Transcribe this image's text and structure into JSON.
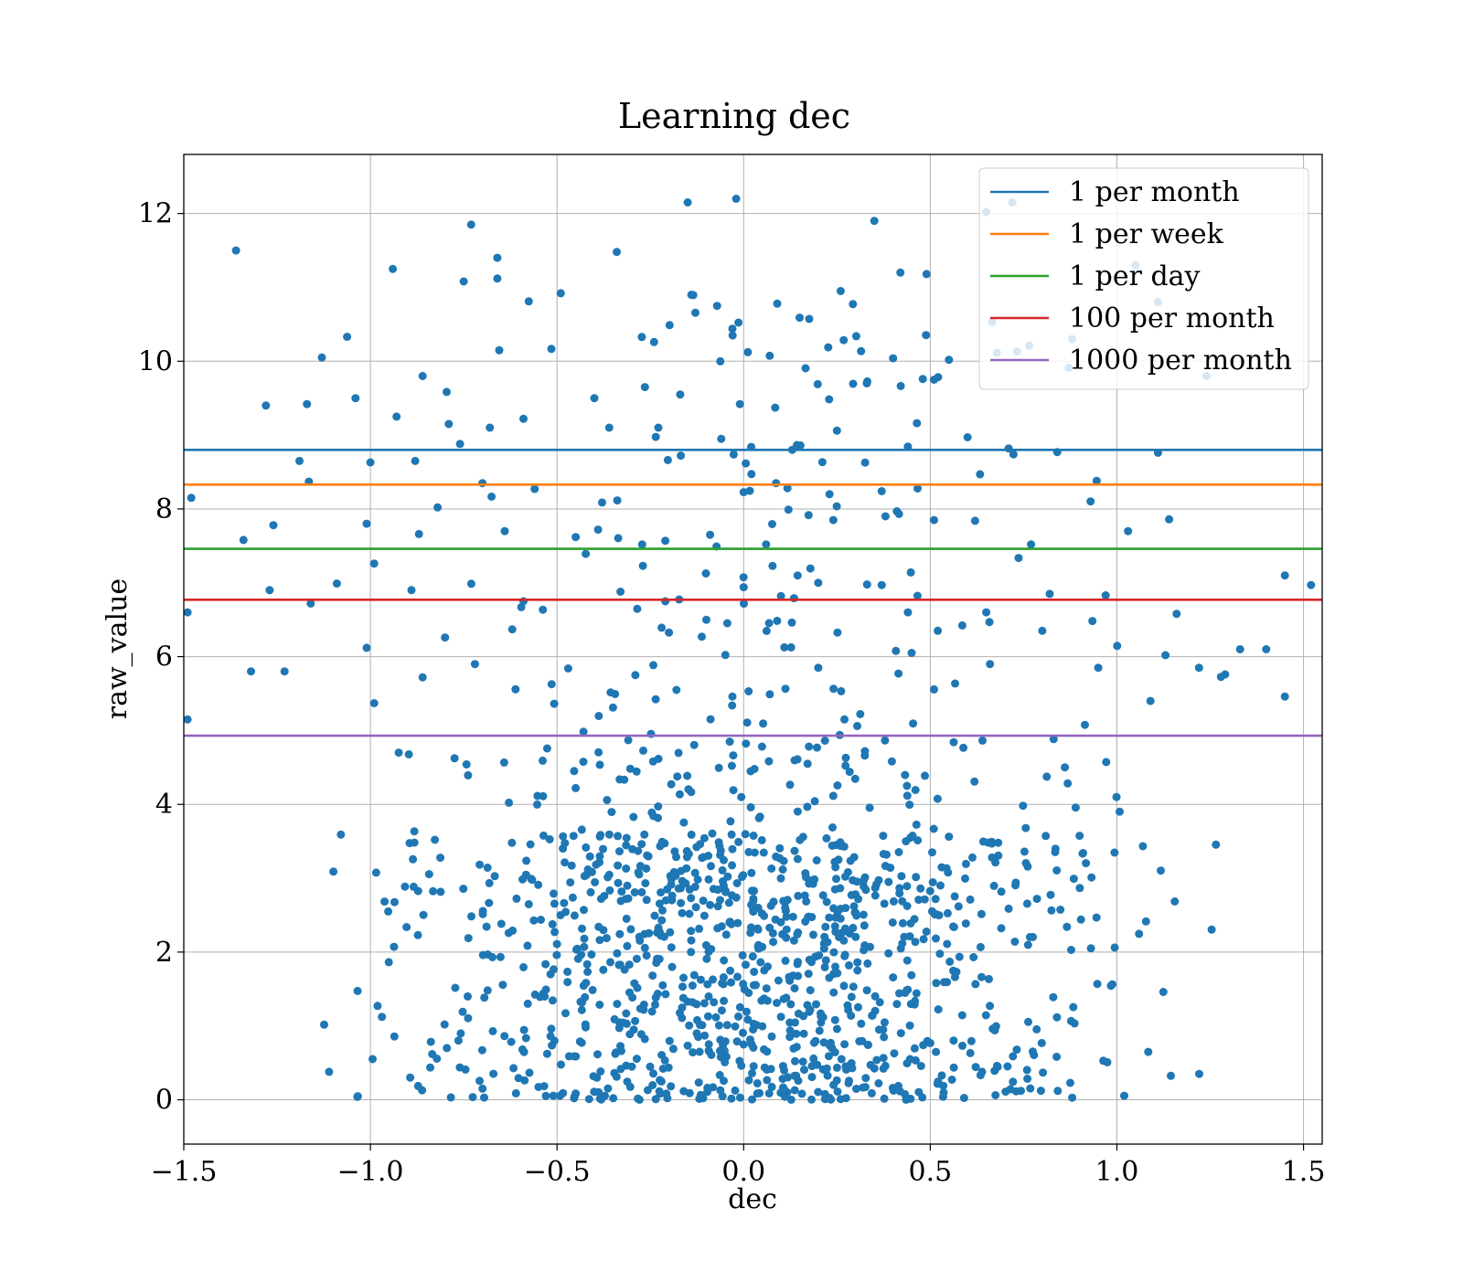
{
  "chart_data": {
    "type": "scatter",
    "title": "Learning dec",
    "xlabel": "dec",
    "ylabel": "raw_value",
    "xlim": [
      -1.5,
      1.55
    ],
    "ylim": [
      -0.6,
      12.8
    ],
    "xticks": [
      -1.5,
      -1.0,
      -0.5,
      0.0,
      0.5,
      1.0,
      1.5
    ],
    "xtick_labels": [
      "−1.5",
      "−1.0",
      "−0.5",
      "0.0",
      "0.5",
      "1.0",
      "1.5"
    ],
    "yticks": [
      0,
      2,
      4,
      6,
      8,
      10,
      12
    ],
    "ytick_labels": [
      "0",
      "2",
      "4",
      "6",
      "8",
      "10",
      "12"
    ],
    "grid": true,
    "legend_position": "top-right",
    "scatter_color": "#1f77b4",
    "point_count": 1400,
    "point_seed": 7,
    "points": [
      [
        -1.36,
        11.5
      ],
      [
        -0.94,
        11.25
      ],
      [
        -0.73,
        11.85
      ],
      [
        -0.15,
        12.15
      ],
      [
        -0.02,
        12.2
      ],
      [
        0.35,
        11.9
      ],
      [
        0.72,
        12.15
      ],
      [
        -0.34,
        11.48
      ],
      [
        -0.66,
        11.4
      ],
      [
        -1.13,
        10.05
      ],
      [
        -0.75,
        11.08
      ],
      [
        -0.66,
        11.12
      ],
      [
        -0.49,
        10.92
      ],
      [
        -0.14,
        10.9
      ],
      [
        0.26,
        10.95
      ],
      [
        0.42,
        11.2
      ],
      [
        0.49,
        11.18
      ],
      [
        0.65,
        12.02
      ],
      [
        1.05,
        11.3
      ],
      [
        -1.28,
        9.4
      ],
      [
        -1.17,
        9.42
      ],
      [
        -0.93,
        9.25
      ],
      [
        -0.86,
        9.8
      ],
      [
        -1.04,
        9.5
      ],
      [
        -0.79,
        9.15
      ],
      [
        -0.68,
        9.1
      ],
      [
        -0.59,
        9.22
      ],
      [
        -0.4,
        9.5
      ],
      [
        -0.36,
        9.1
      ],
      [
        -0.24,
        10.26
      ],
      [
        -0.17,
        9.55
      ],
      [
        -0.03,
        10.44
      ],
      [
        -0.01,
        9.42
      ],
      [
        0.09,
        10.78
      ],
      [
        0.15,
        10.59
      ],
      [
        0.25,
        9.06
      ],
      [
        0.33,
        9.7
      ],
      [
        0.48,
        9.76
      ],
      [
        0.55,
        10.02
      ],
      [
        0.6,
        8.97
      ],
      [
        0.88,
        10.3
      ],
      [
        1.11,
        10.8
      ],
      [
        1.24,
        9.8
      ],
      [
        -1.48,
        8.15
      ],
      [
        -1.19,
        8.65
      ],
      [
        -1.0,
        8.63
      ],
      [
        -0.88,
        8.65
      ],
      [
        -0.82,
        8.02
      ],
      [
        -0.76,
        8.88
      ],
      [
        -0.7,
        8.35
      ],
      [
        -0.56,
        8.27
      ],
      [
        -0.45,
        7.62
      ],
      [
        -0.39,
        7.72
      ],
      [
        -0.21,
        7.57
      ],
      [
        -0.06,
        8.95
      ],
      [
        0.02,
        8.84
      ],
      [
        0.13,
        8.8
      ],
      [
        0.23,
        8.2
      ],
      [
        0.37,
        8.24
      ],
      [
        0.51,
        9.75
      ],
      [
        0.71,
        8.82
      ],
      [
        0.84,
        8.77
      ],
      [
        1.11,
        8.76
      ],
      [
        -1.34,
        7.58
      ],
      [
        -1.26,
        7.78
      ],
      [
        -1.01,
        7.8
      ],
      [
        -0.87,
        7.66
      ],
      [
        -0.64,
        7.7
      ],
      [
        -0.27,
        7.23
      ],
      [
        -0.09,
        7.65
      ],
      [
        0.06,
        7.52
      ],
      [
        0.12,
        7.99
      ],
      [
        0.24,
        7.85
      ],
      [
        0.38,
        7.9
      ],
      [
        0.51,
        7.85
      ],
      [
        0.62,
        7.84
      ],
      [
        0.77,
        7.52
      ],
      [
        1.03,
        7.7
      ],
      [
        1.14,
        7.86
      ],
      [
        -1.49,
        6.6
      ],
      [
        -1.27,
        6.9
      ],
      [
        -1.16,
        6.72
      ],
      [
        -1.09,
        6.99
      ],
      [
        -0.99,
        7.26
      ],
      [
        -0.89,
        6.9
      ],
      [
        -0.59,
        6.75
      ],
      [
        -0.33,
        6.88
      ],
      [
        -0.21,
        6.75
      ],
      [
        -0.1,
        6.5
      ],
      [
        0.0,
        6.94
      ],
      [
        0.1,
        6.82
      ],
      [
        0.2,
        7.0
      ],
      [
        0.37,
        6.97
      ],
      [
        0.44,
        6.6
      ],
      [
        0.65,
        6.6
      ],
      [
        0.82,
        6.85
      ],
      [
        0.97,
        6.83
      ],
      [
        1.16,
        6.58
      ],
      [
        1.45,
        7.1
      ],
      [
        1.52,
        6.97
      ],
      [
        -1.49,
        5.15
      ],
      [
        -1.32,
        5.8
      ],
      [
        -1.23,
        5.8
      ],
      [
        -1.01,
        6.12
      ],
      [
        -0.99,
        5.37
      ],
      [
        -0.86,
        5.72
      ],
      [
        -0.8,
        6.26
      ],
      [
        -0.72,
        5.9
      ],
      [
        -0.62,
        6.37
      ],
      [
        -0.47,
        5.84
      ],
      [
        -0.35,
        5.31
      ],
      [
        -0.29,
        5.75
      ],
      [
        -0.18,
        5.55
      ],
      [
        -0.03,
        5.46
      ],
      [
        0.07,
        5.49
      ],
      [
        0.2,
        5.85
      ],
      [
        0.27,
        5.15
      ],
      [
        0.45,
        6.05
      ],
      [
        0.52,
        6.35
      ],
      [
        0.66,
        5.9
      ],
      [
        0.8,
        6.35
      ],
      [
        0.95,
        5.85
      ],
      [
        1.09,
        5.4
      ],
      [
        1.13,
        6.02
      ],
      [
        1.22,
        5.85
      ],
      [
        1.33,
        6.1
      ],
      [
        1.4,
        6.1
      ],
      [
        1.29,
        5.76
      ],
      [
        1.45,
        5.46
      ]
    ]
  },
  "legend": [
    {
      "label": "1 per month",
      "color": "#1f77b4",
      "y": 8.8
    },
    {
      "label": "1 per week",
      "color": "#ff7f0e",
      "y": 8.33
    },
    {
      "label": "1 per day",
      "color": "#2ca02c",
      "y": 7.46
    },
    {
      "label": "100 per month",
      "color": "#d62728",
      "y": 6.77
    },
    {
      "label": "1000 per month",
      "color": "#9467bd",
      "y": 4.93
    }
  ]
}
